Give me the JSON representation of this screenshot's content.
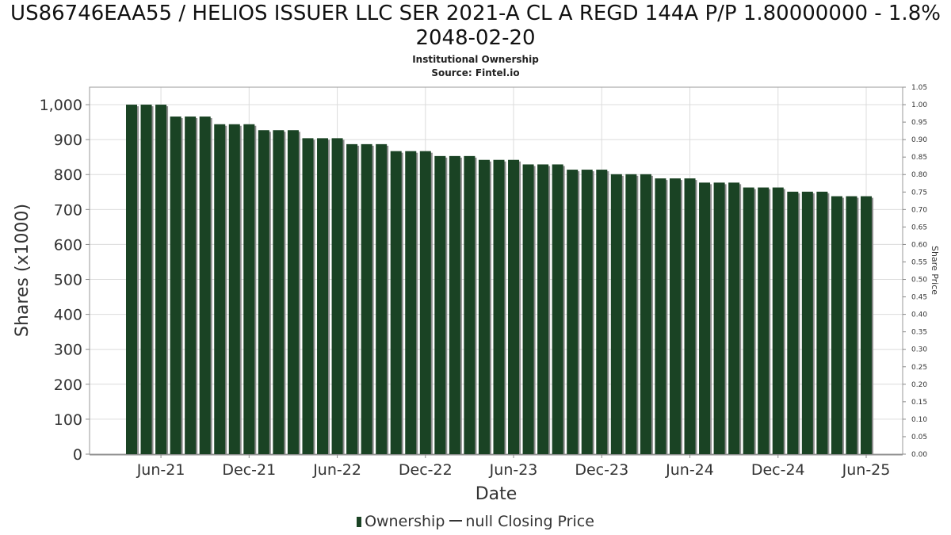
{
  "title": "US86746EAA55 / HELIOS ISSUER LLC SER 2021-A CL A REGD 144A P/P 1.80000000 - 1.8% 2048-02-20",
  "subtitle": "Institutional Ownership",
  "source": "Source: Fintel.io",
  "legend": {
    "ownership_label": "Ownership",
    "price_label": "null Closing Price"
  },
  "colors": {
    "bar": "#1a4324",
    "bar_shadow": "#8c8c8c",
    "grid": "#dcdcdc"
  },
  "chart_data": {
    "type": "bar",
    "xlabel": "Date",
    "ylabel": "Shares (x1000)",
    "y2label": "Share Price",
    "ylim": [
      0,
      1050
    ],
    "y2lim": [
      0,
      1.05
    ],
    "y_ticks": [
      "0",
      "100",
      "200",
      "300",
      "400",
      "500",
      "600",
      "700",
      "800",
      "900",
      "1,000"
    ],
    "y2_ticks": [
      "0.00",
      "0.05",
      "0.10",
      "0.15",
      "0.20",
      "0.25",
      "0.30",
      "0.35",
      "0.40",
      "0.45",
      "0.50",
      "0.55",
      "0.60",
      "0.65",
      "0.70",
      "0.75",
      "0.80",
      "0.85",
      "0.90",
      "0.95",
      "1.00",
      "1.05"
    ],
    "x_ticks": [
      "Jun-21",
      "Dec-21",
      "Jun-22",
      "Dec-22",
      "Jun-23",
      "Dec-23",
      "Jun-24",
      "Dec-24",
      "Jun-25"
    ],
    "grid": true,
    "legend_position": "bottom-center",
    "categories": [
      "Apr-21",
      "May-21",
      "Jun-21",
      "Jul-21",
      "Aug-21",
      "Sep-21",
      "Oct-21",
      "Nov-21",
      "Dec-21",
      "Jan-22",
      "Feb-22",
      "Mar-22",
      "Apr-22",
      "May-22",
      "Jun-22",
      "Jul-22",
      "Aug-22",
      "Sep-22",
      "Oct-22",
      "Nov-22",
      "Dec-22",
      "Jan-23",
      "Feb-23",
      "Mar-23",
      "Apr-23",
      "May-23",
      "Jun-23",
      "Jul-23",
      "Aug-23",
      "Sep-23",
      "Oct-23",
      "Nov-23",
      "Dec-23",
      "Jan-24",
      "Feb-24",
      "Mar-24",
      "Apr-24",
      "May-24",
      "Jun-24",
      "Jul-24",
      "Aug-24",
      "Sep-24",
      "Oct-24",
      "Nov-24",
      "Dec-24",
      "Jan-25",
      "Feb-25",
      "Mar-25",
      "Apr-25",
      "May-25",
      "Jun-25"
    ],
    "series": [
      {
        "name": "Ownership",
        "values": [
          1000,
          1000,
          1000,
          966,
          966,
          966,
          944,
          944,
          944,
          927,
          927,
          927,
          904,
          904,
          904,
          887,
          887,
          887,
          867,
          867,
          867,
          853,
          853,
          853,
          842,
          842,
          842,
          829,
          829,
          829,
          814,
          814,
          814,
          801,
          801,
          801,
          789,
          789,
          789,
          777,
          777,
          777,
          763,
          763,
          763,
          751,
          751,
          751,
          738,
          738,
          738
        ]
      }
    ]
  }
}
